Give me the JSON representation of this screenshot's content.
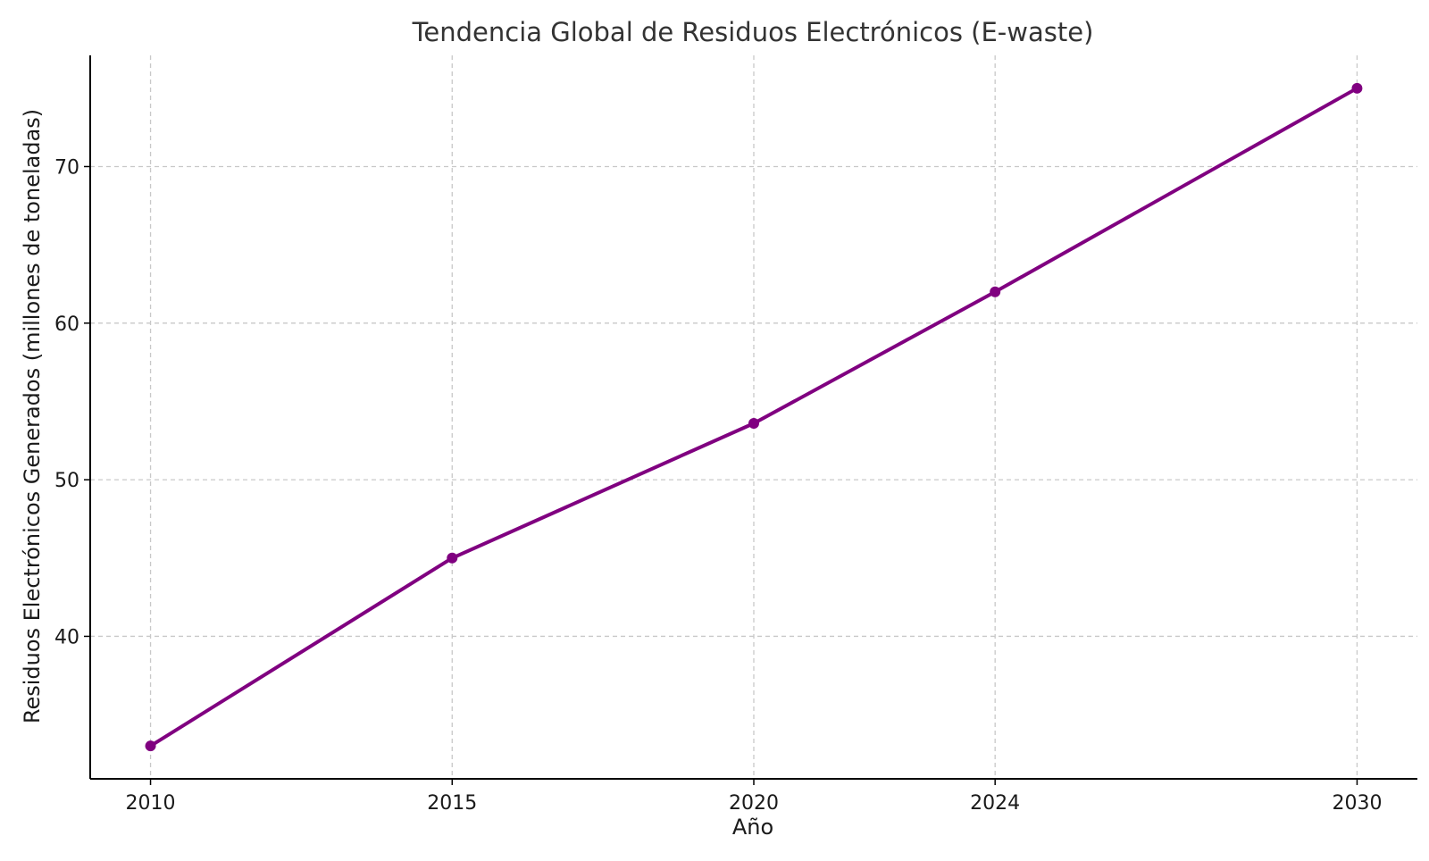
{
  "chart_data": {
    "type": "line",
    "title": "Tendencia Global de Residuos Electrónicos (E-waste)",
    "xlabel": "Año",
    "ylabel": "Residuos Electrónicos Generados (millones de toneladas)",
    "x": [
      2010,
      2015,
      2020,
      2024,
      2030
    ],
    "x_ticks": [
      "2010",
      "2015",
      "2020",
      "2024",
      "2030"
    ],
    "y_ticks": [
      "40",
      "50",
      "60",
      "70"
    ],
    "y_tick_values": [
      40,
      50,
      60,
      70
    ],
    "xlim": [
      2009,
      2031
    ],
    "ylim": [
      30.9,
      77.1
    ],
    "grid": true,
    "series": [
      {
        "values": [
          33.0,
          45.0,
          53.6,
          62.0,
          75.0
        ],
        "color": "#800080"
      }
    ]
  }
}
